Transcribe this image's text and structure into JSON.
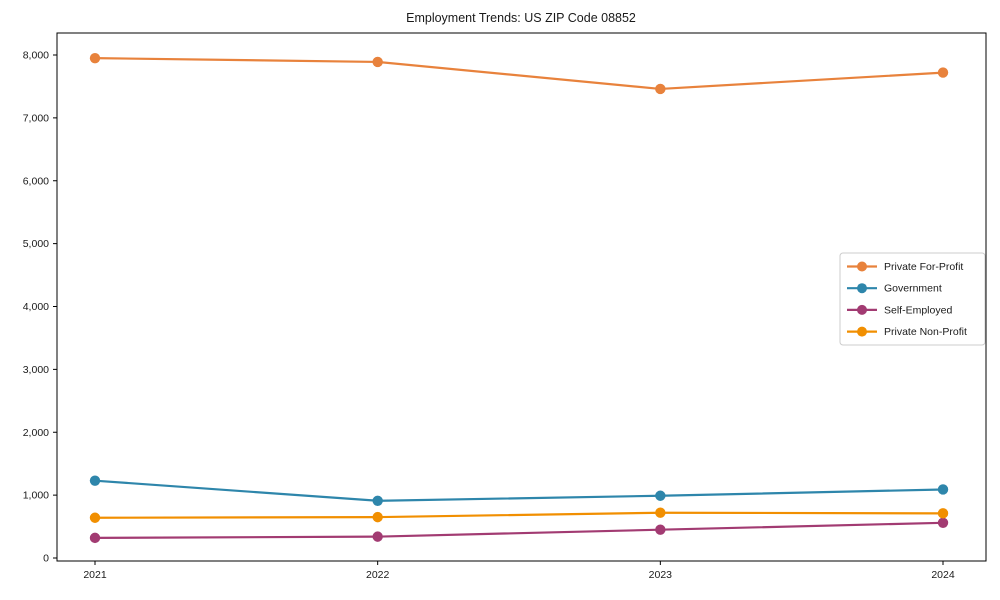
{
  "chart_data": {
    "type": "line",
    "title": "Employment Trends: US ZIP Code 08852",
    "categories": [
      "2021",
      "2022",
      "2023",
      "2024"
    ],
    "series": [
      {
        "name": "Private For-Profit",
        "color": "#E8823C",
        "values": [
          7950,
          7890,
          7460,
          7720
        ]
      },
      {
        "name": "Government",
        "color": "#2E86AB",
        "values": [
          1230,
          910,
          990,
          1090
        ]
      },
      {
        "name": "Self-Employed",
        "color": "#A23B72",
        "values": [
          320,
          340,
          450,
          560
        ]
      },
      {
        "name": "Private Non-Profit",
        "color": "#F18F01",
        "values": [
          640,
          650,
          720,
          710
        ]
      }
    ],
    "yticks": [
      0,
      1000,
      2000,
      3000,
      4000,
      5000,
      6000,
      7000,
      8000
    ],
    "ytick_labels": [
      "0",
      "1,000",
      "2,000",
      "3,000",
      "4,000",
      "5,000",
      "6,000",
      "7,000",
      "8,000"
    ],
    "ylim": [
      -50,
      8350
    ],
    "xlabel": "",
    "ylabel": "",
    "legend_position": "center-right",
    "grid": false,
    "marker": "circle",
    "axis_color": "#000000",
    "text_color": "#1a1a1a",
    "legend_border_color": "#cccccc",
    "background": "#ffffff"
  }
}
